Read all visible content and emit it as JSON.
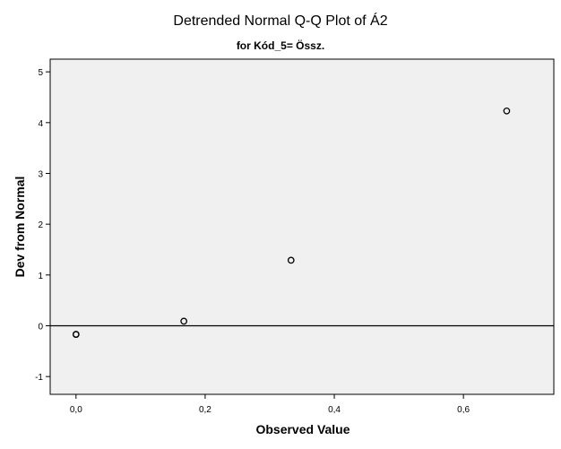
{
  "chart_data": {
    "type": "scatter",
    "title": "Detrended Normal Q-Q Plot of Á2",
    "subtitle": "for Kód_5= Össz.",
    "xlabel": "Observed Value",
    "ylabel": "Dev from Normal",
    "xlim": [
      -0.04,
      0.74
    ],
    "ylim": [
      -1.35,
      5.25
    ],
    "x_ticks": [
      0.0,
      0.2,
      0.4,
      0.6
    ],
    "x_tick_labels": [
      "0,0",
      "0,2",
      "0,4",
      "0,6"
    ],
    "y_ticks": [
      -1,
      0,
      1,
      2,
      3,
      4,
      5
    ],
    "y_tick_labels": [
      "-1",
      "0",
      "1",
      "2",
      "3",
      "4",
      "5"
    ],
    "reference_line_y": 0,
    "grid": false,
    "legend": "none",
    "points": [
      {
        "x": 0.0,
        "y": -0.17
      },
      {
        "x": 0.0,
        "y": -0.17
      },
      {
        "x": 0.167,
        "y": 0.09
      },
      {
        "x": 0.333,
        "y": 1.29
      },
      {
        "x": 0.667,
        "y": 4.23
      }
    ],
    "colors": {
      "plot_background": "#f0f0f0",
      "marker": "#000000",
      "frame": "#000000"
    }
  }
}
